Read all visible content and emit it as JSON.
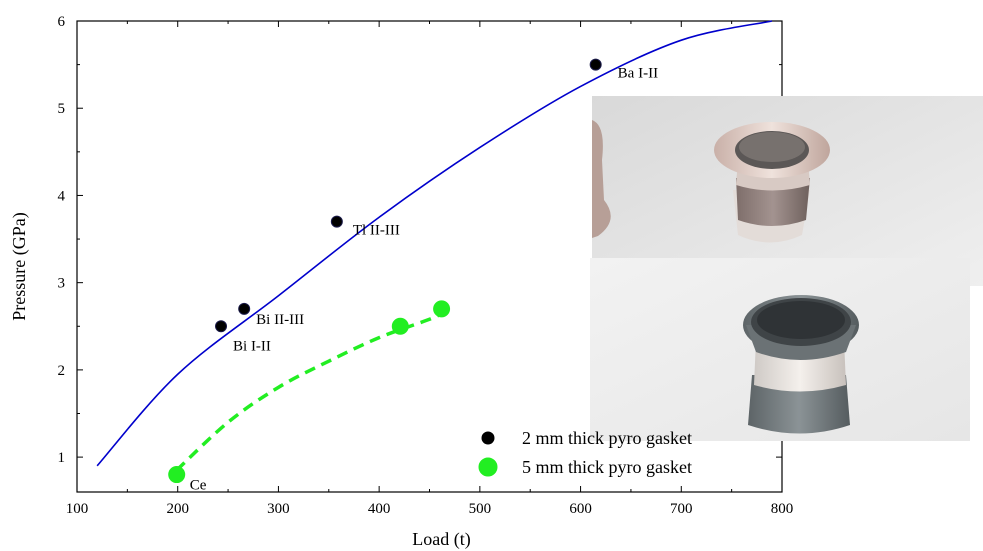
{
  "chart_data": {
    "type": "scatter",
    "xlabel": "Load (t)",
    "ylabel": "Pressure (GPa)",
    "xlim": [
      100,
      800
    ],
    "ylim": [
      0.6,
      6
    ],
    "xticks": [
      "100",
      "200",
      "300",
      "400",
      "500",
      "600",
      "700",
      "800"
    ],
    "yticks": [
      "1",
      "2",
      "3",
      "4",
      "5",
      "6"
    ],
    "xtick_values": [
      100,
      200,
      300,
      400,
      500,
      600,
      700,
      800
    ],
    "ytick_values": [
      1,
      2,
      3,
      4,
      5,
      6
    ],
    "series": [
      {
        "name": "2 mm thick pyro gasket",
        "color": "#000000",
        "points": [
          {
            "x": 243,
            "y": 2.5,
            "label": "Bi I-II"
          },
          {
            "x": 266,
            "y": 2.7,
            "label": "Bi II-III"
          },
          {
            "x": 358,
            "y": 3.7,
            "label": "Tl II-III"
          },
          {
            "x": 615,
            "y": 5.5,
            "label": "Ba I-II"
          }
        ],
        "fit": {
          "color": "#0000cc",
          "style": "solid",
          "x": [
            120,
            200,
            300,
            400,
            500,
            600,
            700,
            790
          ],
          "y": [
            0.9,
            1.95,
            2.85,
            3.75,
            4.55,
            5.25,
            5.78,
            6.0
          ]
        }
      },
      {
        "name": "5 mm thick pyro gasket",
        "color": "#22ee22",
        "points": [
          {
            "x": 199,
            "y": 0.8,
            "label": "Ce"
          },
          {
            "x": 421,
            "y": 2.5,
            "label": ""
          },
          {
            "x": 462,
            "y": 2.7,
            "label": ""
          }
        ],
        "fit": {
          "color": "#22ee22",
          "style": "dashed",
          "x": [
            199,
            250,
            300,
            350,
            400,
            450,
            462
          ],
          "y": [
            0.85,
            1.4,
            1.8,
            2.1,
            2.37,
            2.58,
            2.65
          ]
        }
      }
    ],
    "legend_position": "bottom-right",
    "grid": false
  },
  "photos": [
    {
      "name": "gasket-photo-top",
      "description_icon": "pyro-gasket-cell-photo"
    },
    {
      "name": "gasket-photo-bottom",
      "description_icon": "pyro-gasket-cell-photo"
    }
  ]
}
